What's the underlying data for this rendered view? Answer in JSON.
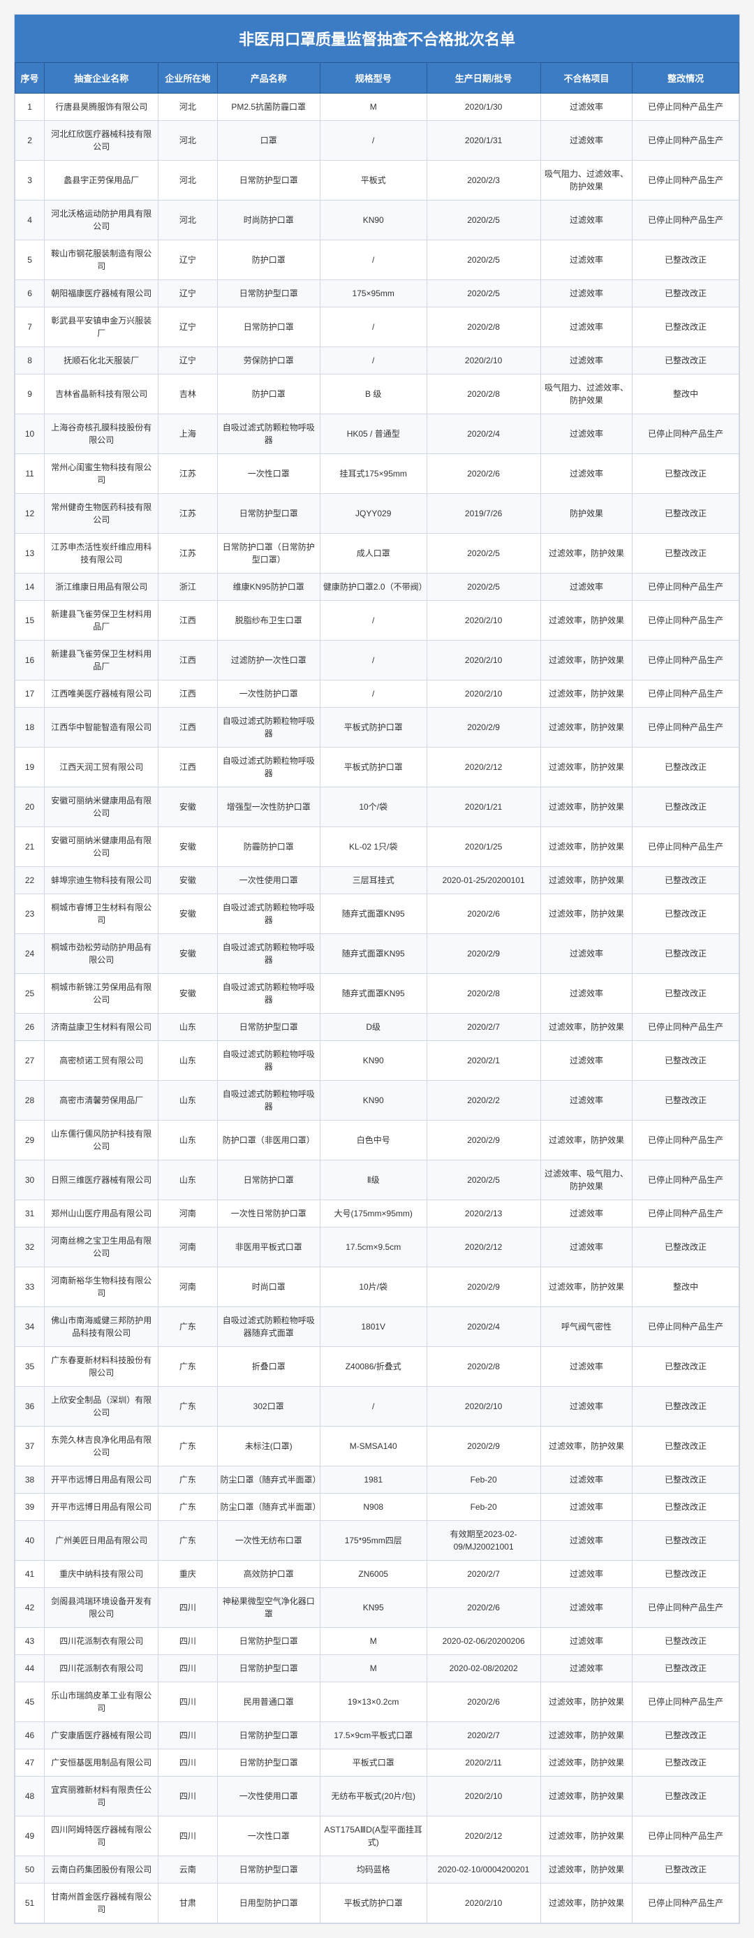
{
  "title": "非医用口罩质量监督抽查不合格批次名单",
  "columns": [
    "序号",
    "抽查企业名称",
    "企业所在地",
    "产品名称",
    "规格型号",
    "生产日期/批号",
    "不合格项目",
    "整改情况"
  ],
  "rows": [
    [
      "1",
      "行唐县昊腾服饰有限公司",
      "河北",
      "PM2.5抗菌防霾口罩",
      "M",
      "2020/1/30",
      "过滤效率",
      "已停止同种产品生产"
    ],
    [
      "2",
      "河北红欣医疗器械科技有限公司",
      "河北",
      "口罩",
      "/",
      "2020/1/31",
      "过滤效率",
      "已停止同种产品生产"
    ],
    [
      "3",
      "蠡县宇正劳保用品厂",
      "河北",
      "日常防护型口罩",
      "平板式",
      "2020/2/3",
      "吸气阻力、过滤效率、防护效果",
      "已停止同种产品生产"
    ],
    [
      "4",
      "河北沃格运动防护用具有限公司",
      "河北",
      "时尚防护口罩",
      "KN90",
      "2020/2/5",
      "过滤效率",
      "已停止同种产品生产"
    ],
    [
      "5",
      "鞍山市钢花服装制造有限公司",
      "辽宁",
      "防护口罩",
      "/",
      "2020/2/5",
      "过滤效率",
      "已整改改正"
    ],
    [
      "6",
      "朝阳福康医疗器械有限公司",
      "辽宁",
      "日常防护型口罩",
      "175×95mm",
      "2020/2/5",
      "过滤效率",
      "已整改改正"
    ],
    [
      "7",
      "彰武县平安镇申金万兴服装厂",
      "辽宁",
      "日常防护口罩",
      "/",
      "2020/2/8",
      "过滤效率",
      "已整改改正"
    ],
    [
      "8",
      "抚顺石化北天服装厂",
      "辽宁",
      "劳保防护口罩",
      "/",
      "2020/2/10",
      "过滤效率",
      "已整改改正"
    ],
    [
      "9",
      "吉林省晶新科技有限公司",
      "吉林",
      "防护口罩",
      "B 级",
      "2020/2/8",
      "吸气阻力、过滤效率、防护效果",
      "整改中"
    ],
    [
      "10",
      "上海谷奇核孔膜科技股份有限公司",
      "上海",
      "自吸过滤式防颗粒物呼吸器",
      "HK05 / 普通型",
      "2020/2/4",
      "过滤效率",
      "已停止同种产品生产"
    ],
    [
      "11",
      "常州心闺蜜生物科技有限公司",
      "江苏",
      "一次性口罩",
      "挂耳式175×95mm",
      "2020/2/6",
      "过滤效率",
      "已整改改正"
    ],
    [
      "12",
      "常州健奇生物医药科技有限公司",
      "江苏",
      "日常防护型口罩",
      "JQYY029",
      "2019/7/26",
      "防护效果",
      "已整改改正"
    ],
    [
      "13",
      "江苏申杰活性炭纤维应用科技有限公司",
      "江苏",
      "日常防护口罩（日常防护型口罩）",
      "成人口罩",
      "2020/2/5",
      "过滤效率，防护效果",
      "已整改改正"
    ],
    [
      "14",
      "浙江维康日用品有限公司",
      "浙江",
      "维康KN95防护口罩",
      "健康防护口罩2.0（不带阀）",
      "2020/2/5",
      "过滤效率",
      "已停止同种产品生产"
    ],
    [
      "15",
      "新建县飞雀劳保卫生材料用品厂",
      "江西",
      "脱脂纱布卫生口罩",
      "/",
      "2020/2/10",
      "过滤效率，防护效果",
      "已停止同种产品生产"
    ],
    [
      "16",
      "新建县飞雀劳保卫生材料用品厂",
      "江西",
      "过滤防护一次性口罩",
      "/",
      "2020/2/10",
      "过滤效率，防护效果",
      "已停止同种产品生产"
    ],
    [
      "17",
      "江西唯美医疗器械有限公司",
      "江西",
      "一次性防护口罩",
      "/",
      "2020/2/10",
      "过滤效率，防护效果",
      "已停止同种产品生产"
    ],
    [
      "18",
      "江西华中智能智造有限公司",
      "江西",
      "自吸过滤式防颗粒物呼吸器",
      "平板式防护口罩",
      "2020/2/9",
      "过滤效率，防护效果",
      "已停止同种产品生产"
    ],
    [
      "19",
      "江西天润工贸有限公司",
      "江西",
      "自吸过滤式防颗粒物呼吸器",
      "平板式防护口罩",
      "2020/2/12",
      "过滤效率，防护效果",
      "已整改改正"
    ],
    [
      "20",
      "安徽可丽纳米健康用品有限公司",
      "安徽",
      "增强型一次性防护口罩",
      "10个/袋",
      "2020/1/21",
      "过滤效率，防护效果",
      "已整改改正"
    ],
    [
      "21",
      "安徽可丽纳米健康用品有限公司",
      "安徽",
      "防霾防护口罩",
      "KL-02 1只/袋",
      "2020/1/25",
      "过滤效率，防护效果",
      "已停止同种产品生产"
    ],
    [
      "22",
      "蚌埠宗迪生物科技有限公司",
      "安徽",
      "一次性使用口罩",
      "三层耳挂式",
      "2020-01-25/20200101",
      "过滤效率，防护效果",
      "已整改改正"
    ],
    [
      "23",
      "桐城市睿博卫生材料有限公司",
      "安徽",
      "自吸过滤式防颗粒物呼吸器",
      "随弃式面罩KN95",
      "2020/2/6",
      "过滤效率，防护效果",
      "已整改改正"
    ],
    [
      "24",
      "桐城市劲松劳动防护用品有限公司",
      "安徽",
      "自吸过滤式防颗粒物呼吸器",
      "随弃式面罩KN95",
      "2020/2/9",
      "过滤效率",
      "已整改改正"
    ],
    [
      "25",
      "桐城市新锦江劳保用品有限公司",
      "安徽",
      "自吸过滤式防颗粒物呼吸器",
      "随弃式面罩KN95",
      "2020/2/8",
      "过滤效率",
      "已整改改正"
    ],
    [
      "26",
      "济南益康卫生材料有限公司",
      "山东",
      "日常防护型口罩",
      "D级",
      "2020/2/7",
      "过滤效率，防护效果",
      "已停止同种产品生产"
    ],
    [
      "27",
      "高密桢诺工贸有限公司",
      "山东",
      "自吸过滤式防颗粒物呼吸器",
      "KN90",
      "2020/2/1",
      "过滤效率",
      "已整改改正"
    ],
    [
      "28",
      "高密市清馨劳保用品厂",
      "山东",
      "自吸过滤式防颗粒物呼吸器",
      "KN90",
      "2020/2/2",
      "过滤效率",
      "已整改改正"
    ],
    [
      "29",
      "山东儒行儒风防护科技有限公司",
      "山东",
      "防护口罩（非医用口罩）",
      "白色中号",
      "2020/2/9",
      "过滤效率，防护效果",
      "已停止同种产品生产"
    ],
    [
      "30",
      "日照三维医疗器械有限公司",
      "山东",
      "日常防护口罩",
      "Ⅱ级",
      "2020/2/5",
      "过滤效率、吸气阻力、防护效果",
      "已停止同种产品生产"
    ],
    [
      "31",
      "郑州山山医疗用品有限公司",
      "河南",
      "一次性日常防护口罩",
      "大号(175mm×95mm)",
      "2020/2/13",
      "过滤效率",
      "已停止同种产品生产"
    ],
    [
      "32",
      "河南丝棉之宝卫生用品有限公司",
      "河南",
      "非医用平板式口罩",
      "17.5cm×9.5cm",
      "2020/2/12",
      "过滤效率",
      "已整改改正"
    ],
    [
      "33",
      "河南新裕华生物科技有限公司",
      "河南",
      "时尚口罩",
      "10片/袋",
      "2020/2/9",
      "过滤效率，防护效果",
      "整改中"
    ],
    [
      "34",
      "佛山市南海威健三邦防护用品科技有限公司",
      "广东",
      "自吸过滤式防颗粒物呼吸器随弃式面罩",
      "1801V",
      "2020/2/4",
      "呼气阀气密性",
      "已停止同种产品生产"
    ],
    [
      "35",
      "广东春夏新材料科技股份有限公司",
      "广东",
      "折叠口罩",
      "Z40086/折叠式",
      "2020/2/8",
      "过滤效率",
      "已整改改正"
    ],
    [
      "36",
      "上欣安全制品（深圳）有限公司",
      "广东",
      "302口罩",
      "/",
      "2020/2/10",
      "过滤效率",
      "已整改改正"
    ],
    [
      "37",
      "东莞久林吉良净化用品有限公司",
      "广东",
      "未标注(口罩)",
      "M-SMSA140",
      "2020/2/9",
      "过滤效率，防护效果",
      "已整改改正"
    ],
    [
      "38",
      "开平市远博日用品有限公司",
      "广东",
      "防尘口罩（随弃式半面罩）",
      "1981",
      "Feb-20",
      "过滤效率",
      "已整改改正"
    ],
    [
      "39",
      "开平市远博日用品有限公司",
      "广东",
      "防尘口罩（随弃式半面罩）",
      "N908",
      "Feb-20",
      "过滤效率",
      "已整改改正"
    ],
    [
      "40",
      "广州美匠日用品有限公司",
      "广东",
      "一次性无纺布口罩",
      "175*95mm四层",
      "有效期至2023-02-09/MJ20021001",
      "过滤效率",
      "已整改改正"
    ],
    [
      "41",
      "重庆中纳科技有限公司",
      "重庆",
      "高效防护口罩",
      "ZN6005",
      "2020/2/7",
      "过滤效率",
      "已整改改正"
    ],
    [
      "42",
      "剑阁县鸿瑞环境设备开发有限公司",
      "四川",
      "神秘果微型空气净化器口罩",
      "KN95",
      "2020/2/6",
      "过滤效率",
      "已停止同种产品生产"
    ],
    [
      "43",
      "四川花派制衣有限公司",
      "四川",
      "日常防护型口罩",
      "M",
      "2020-02-06/20200206",
      "过滤效率",
      "已整改改正"
    ],
    [
      "44",
      "四川花派制衣有限公司",
      "四川",
      "日常防护型口罩",
      "M",
      "2020-02-08/20202",
      "过滤效率",
      "已整改改正"
    ],
    [
      "45",
      "乐山市瑞鸽皮革工业有限公司",
      "四川",
      "民用普通口罩",
      "19×13×0.2cm",
      "2020/2/6",
      "过滤效率，防护效果",
      "已停止同种产品生产"
    ],
    [
      "46",
      "广安康盾医疗器械有限公司",
      "四川",
      "日常防护型口罩",
      "17.5×9cm平板式口罩",
      "2020/2/7",
      "过滤效率，防护效果",
      "已整改改正"
    ],
    [
      "47",
      "广安恒基医用制品有限公司",
      "四川",
      "日常防护型口罩",
      "平板式口罩",
      "2020/2/11",
      "过滤效率，防护效果",
      "已整改改正"
    ],
    [
      "48",
      "宜宾丽雅新材料有限责任公司",
      "四川",
      "一次性使用口罩",
      "无纺布平板式(20片/包)",
      "2020/2/10",
      "过滤效率，防护效果",
      "已整改改正"
    ],
    [
      "49",
      "四川阿姆特医疗器械有限公司",
      "四川",
      "一次性口罩",
      "AST175AⅢD(A型平面挂耳式)",
      "2020/2/12",
      "过滤效率，防护效果",
      "已停止同种产品生产"
    ],
    [
      "50",
      "云南白药集团股份有限公司",
      "云南",
      "日常防护型口罩",
      "均码蓝格",
      "2020-02-10/0004200201",
      "过滤效率，防护效果",
      "已整改改正"
    ],
    [
      "51",
      "甘南州首金医疗器械有限公司",
      "甘肃",
      "日用型防护口罩",
      "平板式防护口罩",
      "2020/2/10",
      "过滤效率，防护效果",
      "已停止同种产品生产"
    ]
  ]
}
